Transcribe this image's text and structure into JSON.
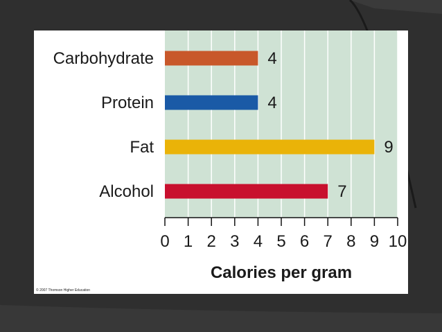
{
  "chart_data": {
    "type": "bar",
    "orientation": "horizontal",
    "categories": [
      "Carbohydrate",
      "Protein",
      "Fat",
      "Alcohol"
    ],
    "values": [
      4,
      4,
      9,
      7
    ],
    "data_labels": [
      "4",
      "4",
      "9",
      "7"
    ],
    "colors": [
      "#c8582a",
      "#1a5aa6",
      "#eab308",
      "#c8102e"
    ],
    "xlabel": "Calories per gram",
    "xlim": [
      0,
      10
    ],
    "xticks": [
      "0",
      "1",
      "2",
      "3",
      "4",
      "5",
      "6",
      "7",
      "8",
      "9",
      "10"
    ],
    "grid": true,
    "plot_background": "#cfe2d4",
    "grid_color": "#ffffff"
  },
  "footer": {
    "copyright": "© 2007 Thomson Higher Education"
  }
}
